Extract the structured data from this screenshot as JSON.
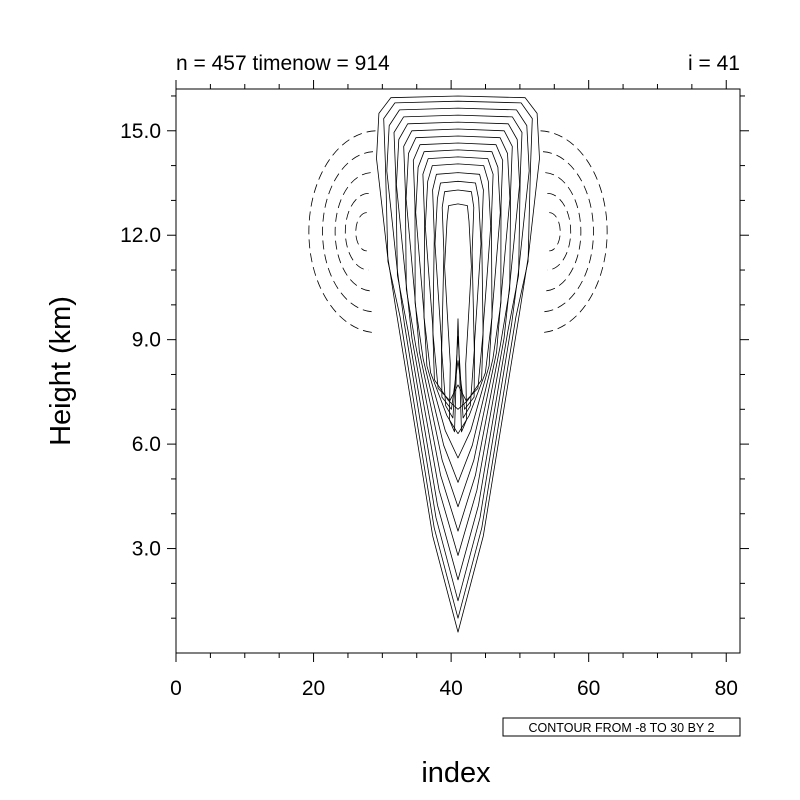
{
  "chart_data": {
    "type": "contour",
    "title_left": "n = 457 timenow = 914",
    "title_right": "i = 41",
    "xlabel": "index",
    "ylabel": "Height (km)",
    "xlim": [
      0,
      82
    ],
    "ylim": [
      0,
      16.2
    ],
    "x_ticks": [
      {
        "value": 0,
        "label": "0"
      },
      {
        "value": 20,
        "label": "20"
      },
      {
        "value": 40,
        "label": "40"
      },
      {
        "value": 60,
        "label": "60"
      },
      {
        "value": 80,
        "label": "80"
      }
    ],
    "y_ticks": [
      {
        "value": 3,
        "label": "3.0"
      },
      {
        "value": 6,
        "label": "6.0"
      },
      {
        "value": 9,
        "label": "9.0"
      },
      {
        "value": 12,
        "label": "12.0"
      },
      {
        "value": 15,
        "label": "15.0"
      }
    ],
    "x_minor_step": 5,
    "y_minor_step": 1,
    "contour_info": "CONTOUR FROM -8 TO 30 BY 2",
    "contour_levels": {
      "min": -8,
      "max": 30,
      "step": 2
    },
    "negative_contour_style": "dashed",
    "plume": {
      "center_x": 41,
      "base_y": 0.6,
      "levels": [
        {
          "top": 16.0,
          "half_width": 11.5,
          "bottom": 0.6
        },
        {
          "top": 15.85,
          "half_width": 10.8,
          "bottom": 1.0
        },
        {
          "top": 15.65,
          "half_width": 10.0,
          "bottom": 1.5
        },
        {
          "top": 15.45,
          "half_width": 9.3,
          "bottom": 2.1
        },
        {
          "top": 15.25,
          "half_width": 8.6,
          "bottom": 2.8
        },
        {
          "top": 15.05,
          "half_width": 7.9,
          "bottom": 3.5
        },
        {
          "top": 14.85,
          "half_width": 7.2,
          "bottom": 4.2
        },
        {
          "top": 14.65,
          "half_width": 6.5,
          "bottom": 4.9
        },
        {
          "top": 14.45,
          "half_width": 5.8,
          "bottom": 5.6
        },
        {
          "top": 14.25,
          "half_width": 5.1,
          "bottom": 6.3
        },
        {
          "top": 14.05,
          "half_width": 4.4,
          "bottom": 7.0
        },
        {
          "top": 13.8,
          "half_width": 3.7,
          "bottom": 7.7
        },
        {
          "top": 13.55,
          "half_width": 3.0,
          "bottom": 8.4
        },
        {
          "top": 13.3,
          "half_width": 2.3,
          "bottom": 9.1
        },
        {
          "top": 12.9,
          "half_width": 1.6,
          "bottom": 9.6
        }
      ]
    },
    "negative_lobes": [
      {
        "center_x": 27.5,
        "center_y": 12.1,
        "levels": [
          {
            "rx": 10.0,
            "ry": 2.9
          },
          {
            "rx": 7.6,
            "ry": 2.3
          },
          {
            "rx": 5.4,
            "ry": 1.7
          },
          {
            "rx": 3.4,
            "ry": 1.1
          },
          {
            "rx": 1.6,
            "ry": 0.55
          }
        ]
      },
      {
        "center_x": 54.5,
        "center_y": 12.1,
        "levels": [
          {
            "rx": 10.0,
            "ry": 2.9
          },
          {
            "rx": 7.6,
            "ry": 2.3
          },
          {
            "rx": 5.4,
            "ry": 1.7
          },
          {
            "rx": 3.4,
            "ry": 1.1
          },
          {
            "rx": 1.6,
            "ry": 0.55
          }
        ]
      }
    ]
  }
}
